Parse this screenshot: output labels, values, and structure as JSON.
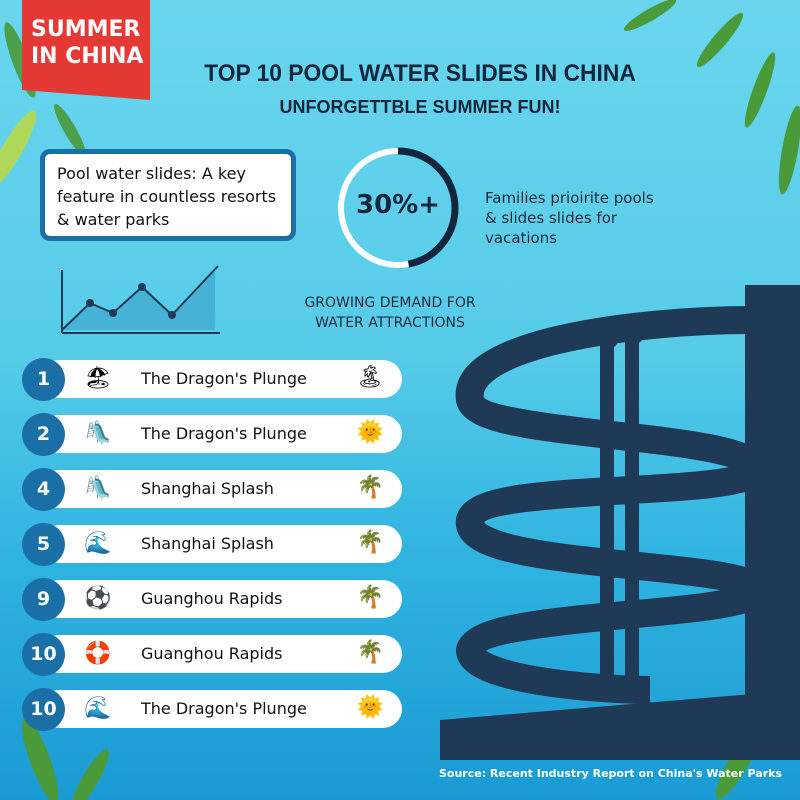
{
  "banner": "SUMMER IN CHINA",
  "title": "TOP 10 POOL WATER SLIDES IN CHINA",
  "subtitle": "UNFORGETTBLE SUMMER FUN!",
  "key_box": "Pool water slides: A key feature in countless resorts & water parks",
  "stat": {
    "value": "30%+",
    "description": "Families prioirite pools & slides slides for vacations",
    "caption": "GROWING DEMAND FOR WATER ATTRACTIONS"
  },
  "list": [
    {
      "rank": "1",
      "name": "The Dragon's Plunge",
      "icon": "pool-house-icon",
      "right_icon": "palm-island-icon"
    },
    {
      "rank": "2",
      "name": "The Dragon's Plunge",
      "icon": "slide-icon",
      "right_icon": "sun-icon"
    },
    {
      "rank": "4",
      "name": "Shanghai Splash",
      "icon": "slide-sun-icon",
      "right_icon": "palm-tree-icon"
    },
    {
      "rank": "5",
      "name": "Shanghai Splash",
      "icon": "splash-pool-icon",
      "right_icon": "palm-tree-icon"
    },
    {
      "rank": "9",
      "name": "Guanghou Rapids",
      "icon": "beach-ball-icon",
      "right_icon": "palm-tree-icon"
    },
    {
      "rank": "10",
      "name": "Guanghou Rapids",
      "icon": "pool-float-icon",
      "right_icon": "palm-tree-icon"
    },
    {
      "rank": "10",
      "name": "The Dragon's Plunge",
      "icon": "wave-pool-icon",
      "right_icon": "sun-icon"
    }
  ],
  "source": "Source: Recent Industry Report on China's Water Parks",
  "colors": {
    "banner": "#e53935",
    "accent": "#1a6fa6",
    "dark": "#13263d"
  }
}
